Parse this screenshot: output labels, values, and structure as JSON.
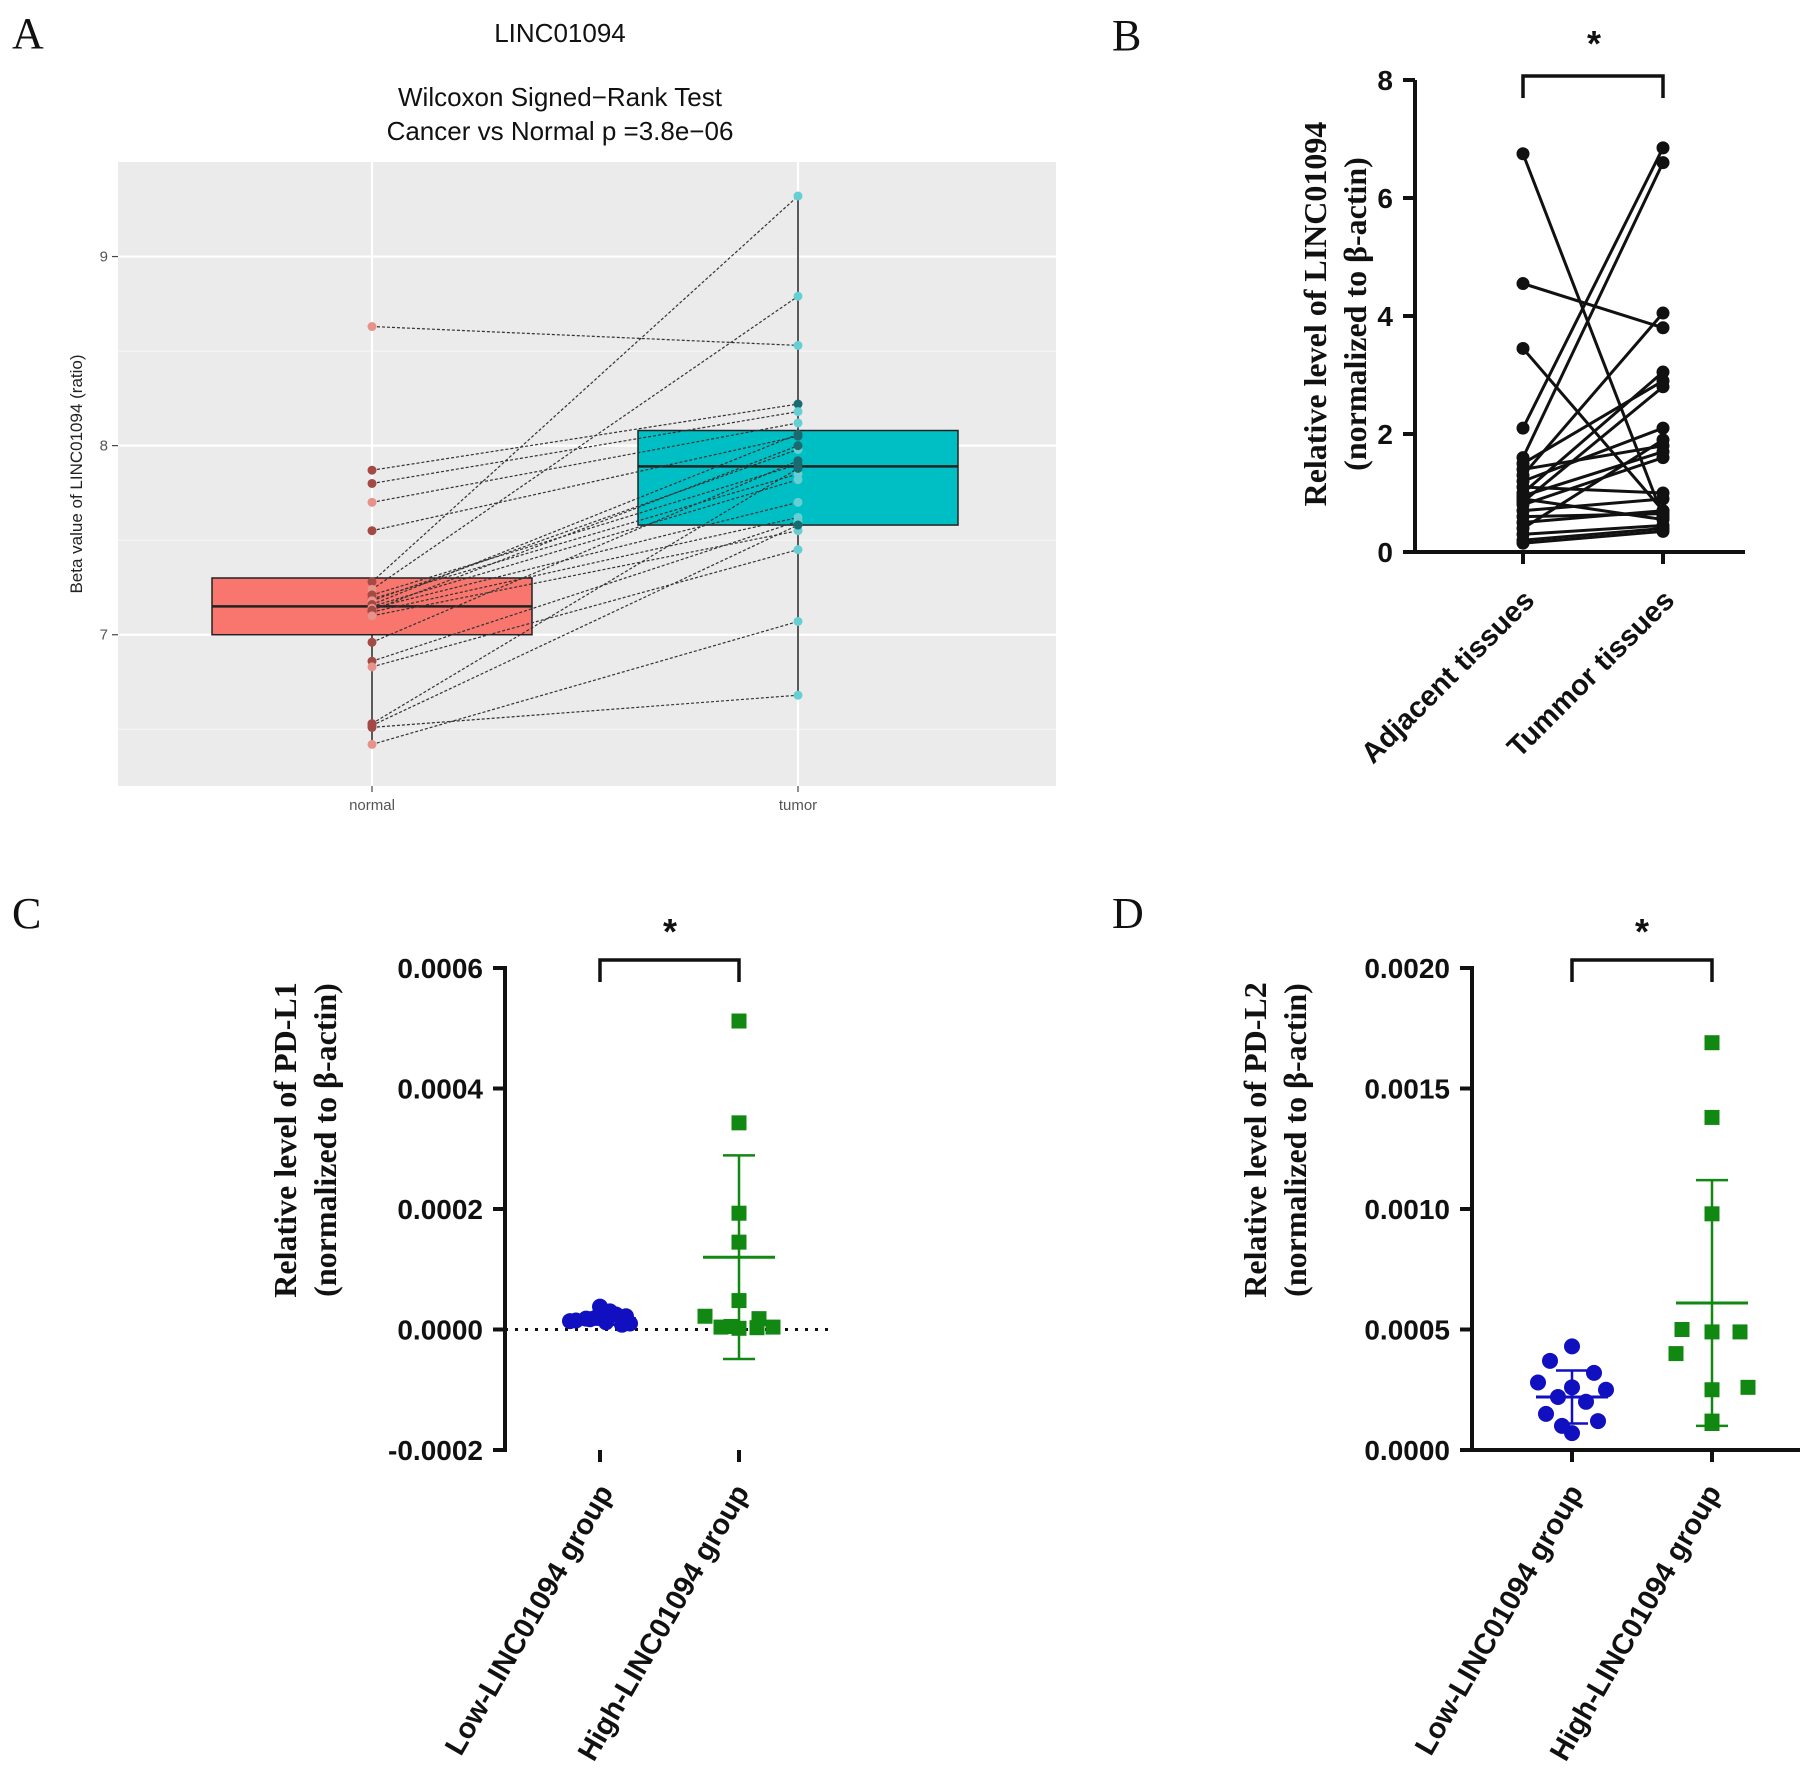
{
  "panel_letters": {
    "a": "A",
    "b": "B",
    "c": "C",
    "d": "D"
  },
  "chart_data": [
    {
      "type": "box",
      "panel": "A",
      "gene": "LINC01094",
      "title": "Wilcoxon Signed−Rank Test",
      "subtitle": "Cancer vs Normal p =3.8e−06",
      "xlabel": "",
      "ylabel": "Beta value of  LINC01094  (ratio)",
      "categories": [
        "normal",
        "tumor"
      ],
      "ylim": [
        6.2,
        9.5
      ],
      "yticks": [
        7,
        8,
        9
      ],
      "box_colors": [
        "#f8766d",
        "#00bfc4"
      ],
      "boxes": [
        {
          "name": "normal",
          "q1": 7.0,
          "median": 7.15,
          "q3": 7.3,
          "whisker_low": 6.42,
          "whisker_high": 7.3
        },
        {
          "name": "tumor",
          "q1": 7.58,
          "median": 7.89,
          "q3": 8.08,
          "whisker_low": 6.68,
          "whisker_high": 9.32
        }
      ],
      "pairs": [
        [
          8.63,
          8.53
        ],
        [
          7.87,
          8.22
        ],
        [
          7.8,
          8.18
        ],
        [
          7.7,
          8.12
        ],
        [
          7.55,
          8.05
        ],
        [
          7.28,
          9.32
        ],
        [
          7.24,
          8.79
        ],
        [
          7.21,
          7.9
        ],
        [
          7.19,
          7.85
        ],
        [
          7.18,
          7.98
        ],
        [
          7.16,
          8.06
        ],
        [
          7.15,
          7.82
        ],
        [
          7.14,
          7.7
        ],
        [
          7.13,
          8.0
        ],
        [
          7.12,
          7.62
        ],
        [
          7.1,
          7.55
        ],
        [
          6.96,
          7.92
        ],
        [
          6.86,
          7.6
        ],
        [
          6.83,
          7.45
        ],
        [
          6.53,
          7.88
        ],
        [
          6.51,
          6.68
        ],
        [
          6.42,
          7.07
        ],
        [
          6.52,
          7.58
        ]
      ]
    },
    {
      "type": "paired_line",
      "panel": "B",
      "title": "",
      "significance": "*",
      "ylabel": [
        "Relative level of LINC01094",
        "(normalized to β-actin)"
      ],
      "categories": [
        "Adjacent  tissues",
        "Tummor tissues"
      ],
      "ylim": [
        0,
        8
      ],
      "yticks": [
        0,
        2,
        4,
        6,
        8
      ],
      "pairs": [
        [
          6.75,
          0.6
        ],
        [
          4.55,
          3.8
        ],
        [
          3.45,
          0.7
        ],
        [
          2.1,
          6.85
        ],
        [
          1.6,
          6.6
        ],
        [
          1.5,
          2.9
        ],
        [
          1.4,
          1.8
        ],
        [
          1.3,
          4.05
        ],
        [
          1.2,
          2.1
        ],
        [
          1.1,
          1.0
        ],
        [
          1.0,
          3.05
        ],
        [
          0.95,
          1.7
        ],
        [
          0.9,
          0.55
        ],
        [
          0.85,
          2.8
        ],
        [
          0.8,
          1.6
        ],
        [
          0.7,
          0.9
        ],
        [
          0.6,
          0.65
        ],
        [
          0.5,
          0.7
        ],
        [
          0.4,
          1.9
        ],
        [
          0.3,
          0.45
        ],
        [
          0.2,
          0.4
        ],
        [
          0.15,
          0.35
        ]
      ]
    },
    {
      "type": "scatter_dot",
      "panel": "C",
      "title": "",
      "significance": "*",
      "ylabel": [
        "Relative level of PD-L1",
        "(normalized to β-actin)"
      ],
      "categories": [
        "Low-LINC01094 group",
        "High-LINC01094 group"
      ],
      "ylim": [
        -0.0002,
        0.0006
      ],
      "yticks": [
        "-0.0002",
        "0.0000",
        "0.0002",
        "0.0004",
        "0.0006"
      ],
      "zero_line": true,
      "series": [
        {
          "name": "Low-LINC01094 group",
          "color": "#1010c0",
          "marker": "circle",
          "mean": 1.8e-05,
          "sd": 1e-05,
          "values": [
            1.5e-05,
            1.8e-05,
            2e-05,
            1.2e-05,
            2.5e-05,
            3.8e-05,
            2.2e-05,
            1e-05,
            1.7e-05,
            8e-06,
            1.4e-05,
            3e-05
          ]
        },
        {
          "name": "High-LINC01094 group",
          "color": "#118811",
          "marker": "square",
          "mean": 0.00012,
          "sd": 0.000169,
          "values": [
            0.000512,
            0.000343,
            0.000193,
            0.000145,
            4.8e-05,
            2.2e-05,
            1.8e-05,
            4e-06,
            2e-06,
            3e-06,
            4e-06,
            5e-06
          ]
        }
      ]
    },
    {
      "type": "scatter_dot",
      "panel": "D",
      "title": "",
      "significance": "*",
      "ylabel": [
        "Relative level of PD-L2",
        "(normalized to β-actin)"
      ],
      "categories": [
        "Low-LINC01094 group",
        "High-LINC01094 group"
      ],
      "ylim": [
        0,
        0.002
      ],
      "yticks": [
        "0.0000",
        "0.0005",
        "0.0010",
        "0.0015",
        "0.0020"
      ],
      "zero_line": false,
      "series": [
        {
          "name": "Low-LINC01094 group",
          "color": "#1010c0",
          "marker": "circle",
          "mean": 0.00022,
          "sd": 0.00011,
          "values": [
            0.00043,
            0.00037,
            0.00032,
            0.00028,
            0.00026,
            0.00025,
            0.00022,
            0.0002,
            0.00015,
            0.00012,
            0.0001,
            7e-05
          ]
        },
        {
          "name": "High-LINC01094 group",
          "color": "#118811",
          "marker": "square",
          "mean": 0.00061,
          "sd": 0.00051,
          "values": [
            0.00169,
            0.00138,
            0.00098,
            0.0005,
            0.00049,
            0.00049,
            0.0004,
            0.00026,
            0.00025,
            0.00012,
            0.00011
          ]
        }
      ]
    }
  ]
}
